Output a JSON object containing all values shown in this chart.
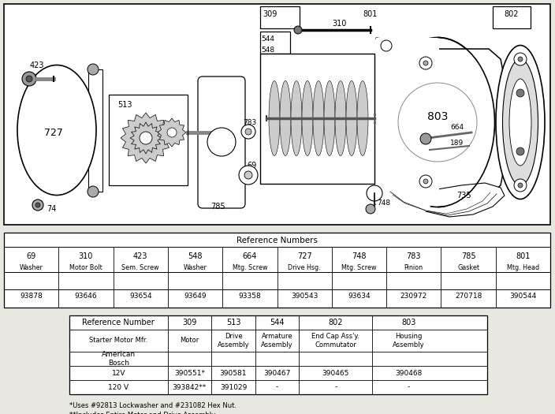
{
  "fig_width": 7.04,
  "fig_height": 5.25,
  "bg_color": "#e8e8e0",
  "table1_title": "Reference Numbers",
  "table1_headers_num": [
    "69",
    "310",
    "423",
    "548",
    "664",
    "727",
    "748",
    "783",
    "785",
    "801"
  ],
  "table1_headers_name": [
    "Washer",
    "Motor Bolt",
    "Sem. Screw",
    "Washer",
    "Mtg. Screw",
    "Drive Hsg.",
    "Mtg. Screw",
    "Pinion",
    "Gasket",
    "Mtg. Head"
  ],
  "table1_values": [
    "93878",
    "93646",
    "93654",
    "93649",
    "93358",
    "390543",
    "93634",
    "230972",
    "270718",
    "390544"
  ],
  "table2_col_headers": [
    "Reference Number",
    "309",
    "513",
    "544",
    "802",
    "803"
  ],
  "table2_subheaders": [
    "Starter Motor Mfr.",
    "Motor",
    "Drive\nAssembly",
    "Armature\nAssembly",
    "End Cap Ass'y.\nCommutator",
    "Housing\nAssembly"
  ],
  "table2_row_bosch": [
    "American\nBosch",
    "",
    "",
    "",
    "",
    ""
  ],
  "table2_row_12v": [
    "12V",
    "390551*",
    "390581",
    "390467",
    "390465",
    "390468"
  ],
  "table2_row_120v": [
    "120 V",
    "393842**",
    "391029",
    "-",
    "-",
    "-"
  ],
  "footnote1": "*Uses #92813 Lockwasher and #231082 Hex Nut.",
  "footnote2": "**Includes Entire Motor and Drive Assembly"
}
